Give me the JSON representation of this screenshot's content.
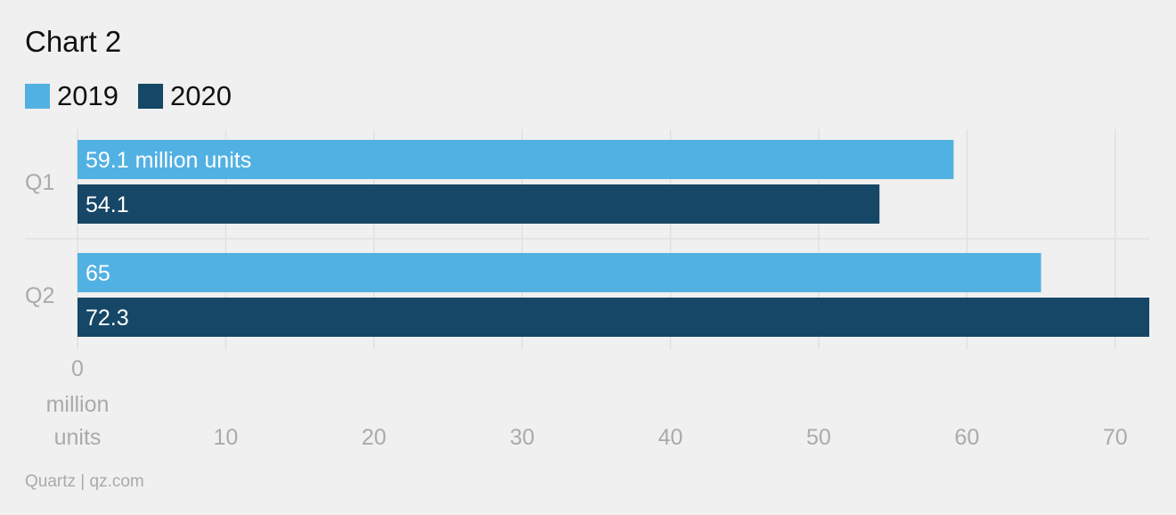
{
  "chart_data": {
    "type": "bar",
    "orientation": "horizontal",
    "title": "Chart 2",
    "categories": [
      "Q1",
      "Q2"
    ],
    "series": [
      {
        "name": "2019",
        "color": "#52b1e3",
        "values": [
          59.1,
          65
        ]
      },
      {
        "name": "2020",
        "color": "#164766",
        "values": [
          54.1,
          72.3
        ]
      }
    ],
    "data_labels": [
      [
        "59.1 million units",
        "65"
      ],
      [
        "54.1",
        "72.3"
      ]
    ],
    "x_ticks": [
      {
        "value": 0,
        "label": "0 million units"
      },
      {
        "value": 10,
        "label": "10"
      },
      {
        "value": 20,
        "label": "20"
      },
      {
        "value": 30,
        "label": "30"
      },
      {
        "value": 40,
        "label": "40"
      },
      {
        "value": 50,
        "label": "50"
      },
      {
        "value": 60,
        "label": "60"
      },
      {
        "value": 70,
        "label": "70"
      }
    ],
    "xlim": [
      0,
      72.3
    ],
    "grid": true,
    "legend_position": "top-left"
  },
  "source": "Quartz | qz.com"
}
